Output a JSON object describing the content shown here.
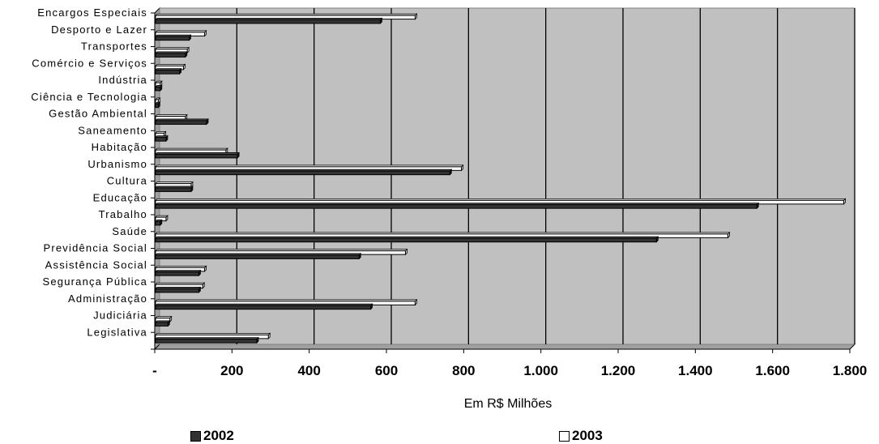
{
  "chart_data": {
    "type": "bar",
    "orientation": "horizontal",
    "categories": [
      "Encargos Especiais",
      "Desporto e Lazer",
      "Transportes",
      "Comércio e Serviços",
      "Indústria",
      "Ciência e Tecnologia",
      "Gestão Ambiental",
      "Saneamento",
      "Habitação",
      "Urbanismo",
      "Cultura",
      "Educação",
      "Trabalho",
      "Saúde",
      "Previdência Social",
      "Assistência Social",
      "Segurança Pública",
      "Administração",
      "Judiciária",
      "Legislativa"
    ],
    "series": [
      {
        "name": "2002",
        "color": "#333333",
        "values": [
          580,
          85,
          75,
          60,
          10,
          5,
          130,
          25,
          210,
          760,
          90,
          1555,
          10,
          1295,
          525,
          110,
          110,
          555,
          30,
          260
        ]
      },
      {
        "name": "2003",
        "color": "#ffffff",
        "values": [
          670,
          125,
          80,
          70,
          10,
          5,
          75,
          20,
          180,
          790,
          90,
          1780,
          25,
          1480,
          645,
          125,
          120,
          670,
          35,
          290
        ]
      }
    ],
    "xlabel": "Em R$ Milhões",
    "ylabel": "",
    "xlim": [
      0,
      1800
    ],
    "xticks": [
      0,
      200,
      400,
      600,
      800,
      1000,
      1200,
      1400,
      1600,
      1800
    ],
    "xtick_labels": [
      "-",
      "200",
      "400",
      "600",
      "800",
      "1.000",
      "1.200",
      "1.400",
      "1.600",
      "1.800"
    ],
    "grid": "vertical",
    "plot_background": "#c0c0c0",
    "legend_position": "bottom"
  }
}
